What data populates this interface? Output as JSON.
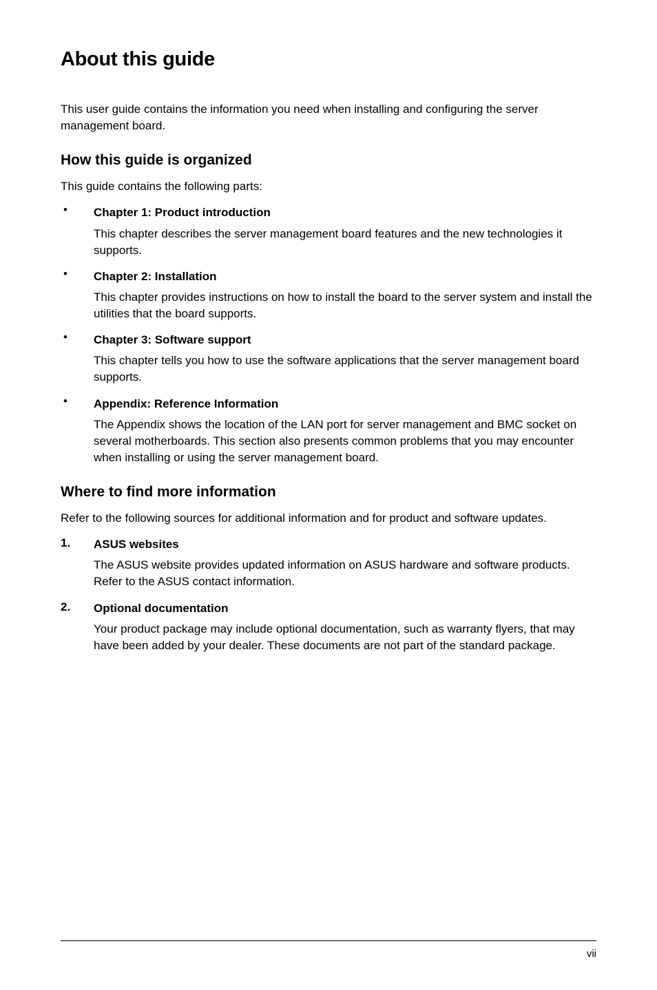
{
  "colors": {
    "background": "#ffffff",
    "text": "#000000",
    "divider": "#000000"
  },
  "typography": {
    "title_fontsize": 29,
    "heading_fontsize": 21,
    "body_fontsize": 17,
    "footer_fontsize": 15,
    "body_font": "Arial",
    "title_font": "Verdana"
  },
  "title": "About this guide",
  "intro": "This user guide contains the information you need when installing and configuring the server management board.",
  "section1": {
    "heading": "How this guide is organized",
    "intro": "This guide contains the following parts:",
    "items": [
      {
        "title": "Chapter 1: Product introduction",
        "body": "This chapter describes the server management board features and the new technologies it supports."
      },
      {
        "title": "Chapter 2: Installation",
        "body": "This chapter provides instructions on how to install the board to the server system and install the utilities that the board supports."
      },
      {
        "title": "Chapter 3: Software support",
        "body": "This chapter tells you how to use the software applications that the server management board supports."
      },
      {
        "title": "Appendix: Reference Information",
        "body": "The Appendix shows the location of the LAN port for server management and BMC socket on several motherboards. This section also presents common problems that you may encounter when installing or using the server management board."
      }
    ]
  },
  "section2": {
    "heading": "Where to find more information",
    "intro": "Refer to the following sources for additional information and for product and software updates.",
    "items": [
      {
        "number": "1.",
        "title": "ASUS websites",
        "body": "The ASUS website provides updated information on ASUS hardware and software products. Refer to the ASUS contact information."
      },
      {
        "number": "2.",
        "title": "Optional documentation",
        "body": "Your product package may include optional documentation, such as warranty flyers, that may have been added by your dealer. These documents are not part of the standard package."
      }
    ]
  },
  "page_number": "vii"
}
